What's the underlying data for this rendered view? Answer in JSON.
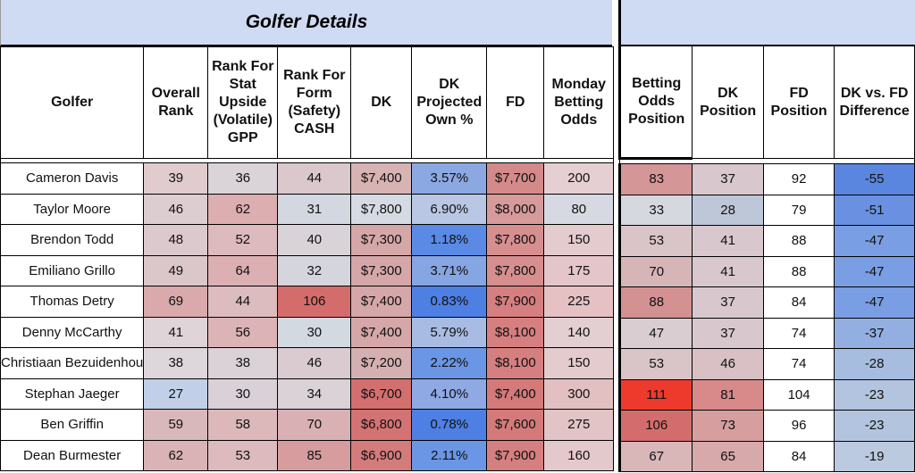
{
  "titles": {
    "left": "Golfer Details",
    "right": ""
  },
  "headers_left": [
    "Golfer",
    "Overall Rank",
    "Rank For Stat Upside (Volatile) GPP",
    "Rank For Form (Safety) CASH",
    "DK",
    "DK Projected Own %",
    "FD",
    "Monday Betting Odds"
  ],
  "headers_right": [
    "Betting Odds Position",
    "DK Position",
    "FD Position",
    "DK vs. FD Difference"
  ],
  "rows": [
    {
      "golfer": "Cameron Davis",
      "overall": "39",
      "stat": "36",
      "form": "44",
      "dk": "$7,400",
      "own": "3.57%",
      "fd": "$7,700",
      "odds": "200",
      "odds_pos": "83",
      "dk_pos": "37",
      "fd_pos": "92",
      "diff": "-55"
    },
    {
      "golfer": "Taylor Moore",
      "overall": "46",
      "stat": "62",
      "form": "31",
      "dk": "$7,800",
      "own": "6.90%",
      "fd": "$8,000",
      "odds": "80",
      "odds_pos": "33",
      "dk_pos": "28",
      "fd_pos": "79",
      "diff": "-51"
    },
    {
      "golfer": "Brendon Todd",
      "overall": "48",
      "stat": "52",
      "form": "40",
      "dk": "$7,300",
      "own": "1.18%",
      "fd": "$7,800",
      "odds": "150",
      "odds_pos": "53",
      "dk_pos": "41",
      "fd_pos": "88",
      "diff": "-47"
    },
    {
      "golfer": "Emiliano Grillo",
      "overall": "49",
      "stat": "64",
      "form": "32",
      "dk": "$7,300",
      "own": "3.71%",
      "fd": "$7,800",
      "odds": "175",
      "odds_pos": "70",
      "dk_pos": "41",
      "fd_pos": "88",
      "diff": "-47"
    },
    {
      "golfer": "Thomas Detry",
      "overall": "69",
      "stat": "44",
      "form": "106",
      "dk": "$7,400",
      "own": "0.83%",
      "fd": "$7,900",
      "odds": "225",
      "odds_pos": "88",
      "dk_pos": "37",
      "fd_pos": "84",
      "diff": "-47"
    },
    {
      "golfer": "Denny McCarthy",
      "overall": "41",
      "stat": "56",
      "form": "30",
      "dk": "$7,400",
      "own": "5.79%",
      "fd": "$8,100",
      "odds": "140",
      "odds_pos": "47",
      "dk_pos": "37",
      "fd_pos": "74",
      "diff": "-37"
    },
    {
      "golfer": "Christiaan Bezuidenhou",
      "overall": "38",
      "stat": "38",
      "form": "46",
      "dk": "$7,200",
      "own": "2.22%",
      "fd": "$8,100",
      "odds": "150",
      "odds_pos": "53",
      "dk_pos": "46",
      "fd_pos": "74",
      "diff": "-28"
    },
    {
      "golfer": "Stephan Jaeger",
      "overall": "27",
      "stat": "30",
      "form": "34",
      "dk": "$6,700",
      "own": "4.10%",
      "fd": "$7,400",
      "odds": "300",
      "odds_pos": "111",
      "dk_pos": "81",
      "fd_pos": "104",
      "diff": "-23"
    },
    {
      "golfer": "Ben Griffin",
      "overall": "59",
      "stat": "58",
      "form": "70",
      "dk": "$6,800",
      "own": "0.78%",
      "fd": "$7,600",
      "odds": "275",
      "odds_pos": "106",
      "dk_pos": "73",
      "fd_pos": "96",
      "diff": "-23"
    },
    {
      "golfer": "Dean Burmester",
      "overall": "62",
      "stat": "53",
      "form": "85",
      "dk": "$6,900",
      "own": "2.11%",
      "fd": "$7,900",
      "odds": "160",
      "odds_pos": "67",
      "dk_pos": "65",
      "fd_pos": "84",
      "diff": "-19"
    }
  ],
  "cell_colors": [
    [
      "#ffffff",
      "#e1cbce",
      "#dad4d9",
      "#dbc8cc",
      "#d8b3b4",
      "#8ba8e3",
      "#d48a8a",
      "#e6cfd2",
      "#d59698",
      "#d8c7cc",
      "#ffffff",
      "#5a86e0"
    ],
    [
      "#ffffff",
      "#dccdd1",
      "#dcaeb0",
      "#d3d7df",
      "#d6dbe3",
      "#b9c7e5",
      "#d79a9b",
      "#d6d9e1",
      "#d6d8e0",
      "#bdc7d8",
      "#ffffff",
      "#6a91e1"
    ],
    [
      "#ffffff",
      "#dbc9cd",
      "#dcbabd",
      "#d9d2d7",
      "#d5a7a8",
      "#5a8ae5",
      "#d78e8f",
      "#e4cbce",
      "#d9c4c7",
      "#d8c8cd",
      "#ffffff",
      "#7a9ee3"
    ],
    [
      "#ffffff",
      "#dbc6ca",
      "#dcb0b3",
      "#d5d6dd",
      "#d5a7a8",
      "#86a5e3",
      "#d78e8f",
      "#e4c6ca",
      "#d6b5b7",
      "#d8c8cd",
      "#ffffff",
      "#7a9ee3"
    ],
    [
      "#ffffff",
      "#d9a9ab",
      "#dcbcbf",
      "#d46c6c",
      "#d5a7a8",
      "#4e7fe3",
      "#d67f80",
      "#e5c1c4",
      "#d39192",
      "#d8c8cd",
      "#ffffff",
      "#7a9ee3"
    ],
    [
      "#ffffff",
      "#dfd4d8",
      "#dcb3b6",
      "#d3d9e1",
      "#d5a7a8",
      "#a8bce3",
      "#d67f80",
      "#e3cfd2",
      "#d9cdd1",
      "#d8c8cd",
      "#ffffff",
      "#93afe1"
    ],
    [
      "#ffffff",
      "#ddd6db",
      "#dbd2d7",
      "#d9cbcf",
      "#d5b0b1",
      "#6a96e5",
      "#d67f80",
      "#e4cbce",
      "#d9c4c7",
      "#d8c0c4",
      "#ffffff",
      "#a6bde0"
    ],
    [
      "#ffffff",
      "#c1d0e8",
      "#d9d1d7",
      "#dad2d7",
      "#d46f70",
      "#8ea9e3",
      "#d47a7a",
      "#e2c0c2",
      "#ee3a2c",
      "#d88a8b",
      "#ffffff",
      "#b3c5de"
    ],
    [
      "#ffffff",
      "#d9b8bb",
      "#dcb8bb",
      "#d9b1b4",
      "#d47373",
      "#4e7fe3",
      "#d47a7a",
      "#e2c3c6",
      "#d36d6d",
      "#d79e9f",
      "#ffffff",
      "#b3c5de"
    ],
    [
      "#ffffff",
      "#d9b3b6",
      "#dcbabd",
      "#d69c9e",
      "#d47c7c",
      "#6a96e5",
      "#d67f80",
      "#e4c9cc",
      "#d9b6b8",
      "#d8a9ab",
      "#ffffff",
      "#bccae0"
    ]
  ]
}
